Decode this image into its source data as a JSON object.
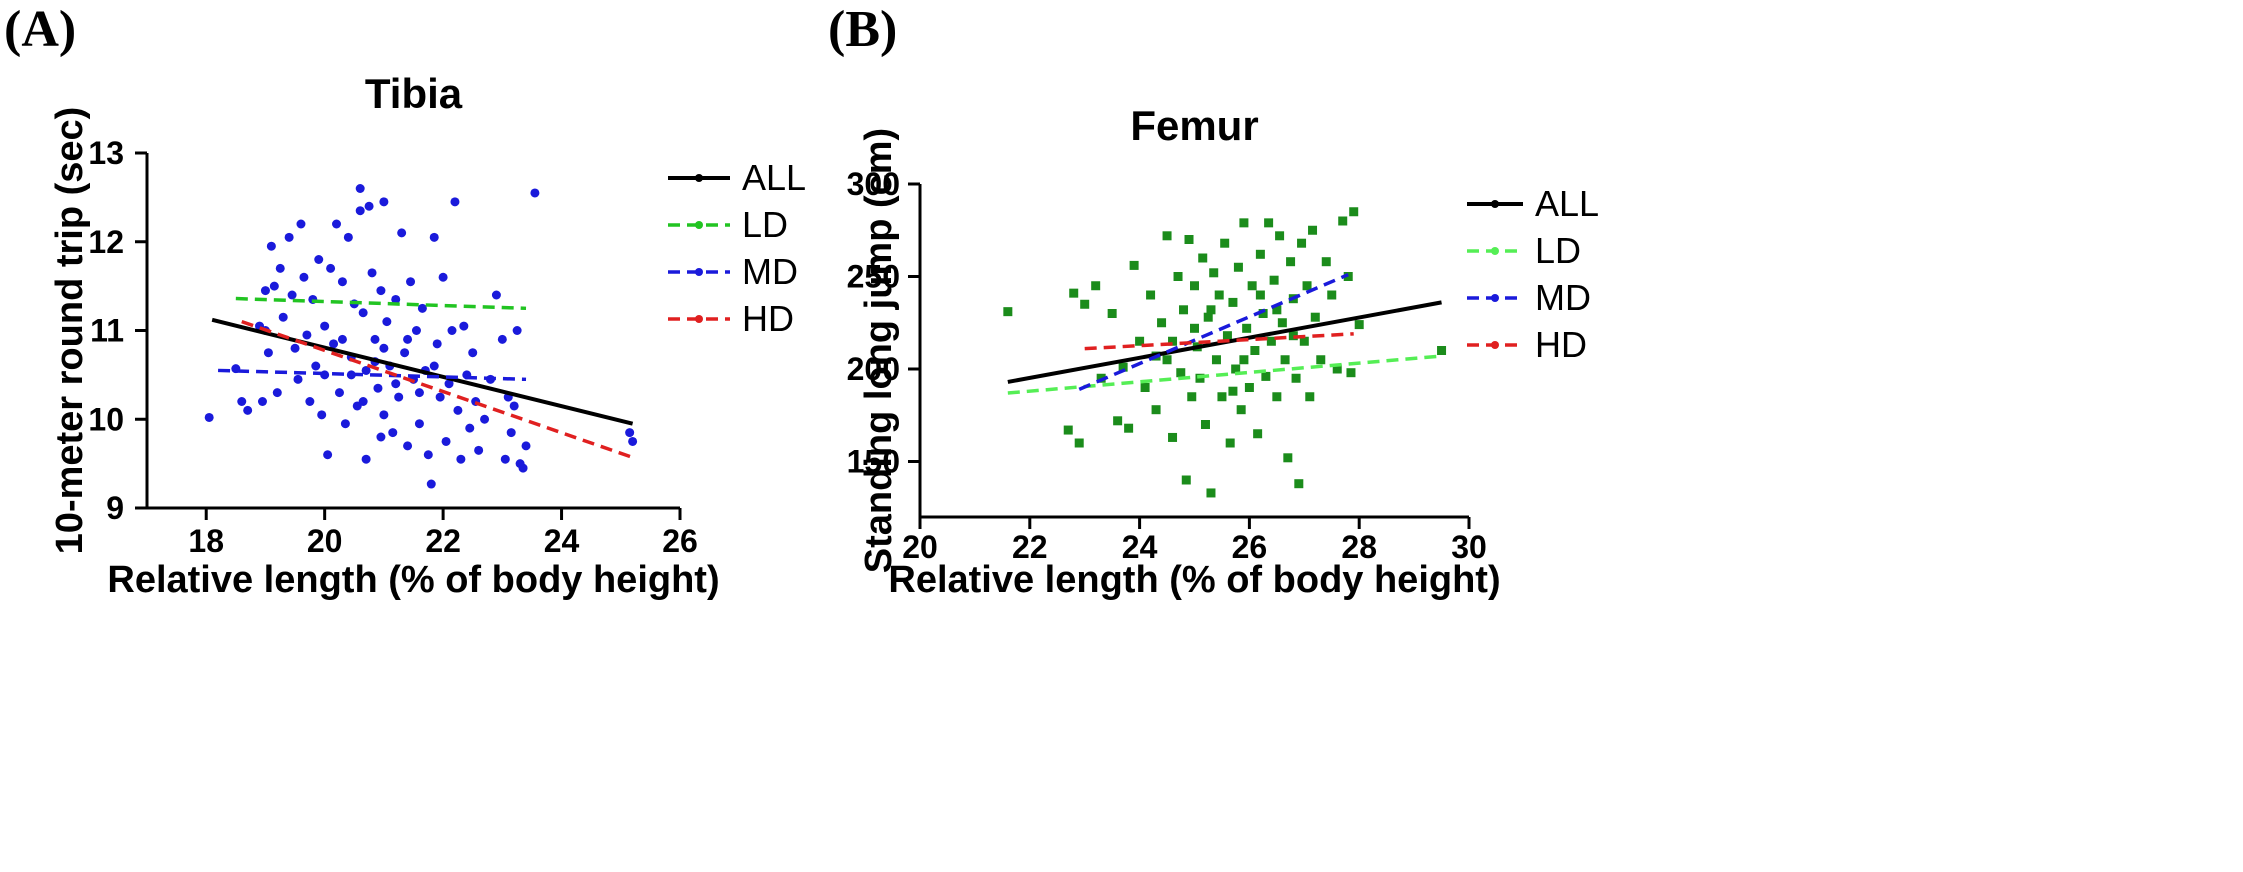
{
  "panels": {
    "a": {
      "letter": "(A)"
    },
    "b": {
      "letter": "(B)"
    }
  },
  "chart_data": [
    {
      "type": "scatter",
      "title": "Tibia",
      "xlabel": "Relative length (% of body height)",
      "ylabel": "10-meter round trip (sec)",
      "xlim": [
        17,
        26
      ],
      "ylim": [
        9,
        13
      ],
      "xticks": [
        18,
        20,
        22,
        24,
        26
      ],
      "yticks": [
        9,
        10,
        11,
        12,
        13
      ],
      "grid": false,
      "legend_position": "right",
      "point_color": "#1a1adb",
      "series": [
        {
          "name": "ALL",
          "color": "#000000",
          "dash": "solid",
          "fit": {
            "x": [
              18.1,
              25.2
            ],
            "y": [
              11.12,
              9.95
            ]
          }
        },
        {
          "name": "LD",
          "color": "#22c422",
          "dash": "dashed",
          "fit": {
            "x": [
              18.5,
              23.4
            ],
            "y": [
              11.36,
              11.25
            ]
          }
        },
        {
          "name": "MD",
          "color": "#1a1adb",
          "dash": "dashed",
          "fit": {
            "x": [
              18.2,
              23.4
            ],
            "y": [
              10.55,
              10.45
            ]
          }
        },
        {
          "name": "HD",
          "color": "#e02020",
          "dash": "dashed",
          "fit": {
            "x": [
              18.6,
              25.2
            ],
            "y": [
              11.1,
              9.57
            ]
          }
        }
      ],
      "points": [
        [
          18.05,
          10.02
        ],
        [
          18.5,
          10.57
        ],
        [
          18.6,
          10.2
        ],
        [
          18.7,
          10.1
        ],
        [
          18.9,
          11.05
        ],
        [
          18.95,
          10.2
        ],
        [
          19.0,
          11.45
        ],
        [
          19.0,
          11.0
        ],
        [
          19.05,
          10.75
        ],
        [
          19.1,
          11.95
        ],
        [
          19.15,
          11.5
        ],
        [
          19.2,
          10.3
        ],
        [
          19.25,
          11.7
        ],
        [
          19.3,
          11.15
        ],
        [
          19.4,
          12.05
        ],
        [
          19.45,
          11.4
        ],
        [
          19.5,
          10.8
        ],
        [
          19.55,
          10.45
        ],
        [
          19.6,
          12.2
        ],
        [
          19.65,
          11.6
        ],
        [
          19.7,
          10.95
        ],
        [
          19.75,
          10.2
        ],
        [
          19.8,
          11.35
        ],
        [
          19.85,
          10.6
        ],
        [
          19.9,
          11.8
        ],
        [
          19.95,
          10.05
        ],
        [
          20.0,
          11.05
        ],
        [
          20.0,
          10.5
        ],
        [
          20.05,
          9.6
        ],
        [
          20.1,
          11.7
        ],
        [
          20.15,
          10.85
        ],
        [
          20.2,
          12.2
        ],
        [
          20.25,
          10.3
        ],
        [
          20.3,
          11.55
        ],
        [
          20.35,
          9.95
        ],
        [
          20.4,
          12.05
        ],
        [
          20.45,
          10.7
        ],
        [
          20.5,
          11.3
        ],
        [
          20.55,
          10.15
        ],
        [
          20.6,
          12.35
        ],
        [
          20.6,
          12.6
        ],
        [
          20.65,
          11.2
        ],
        [
          20.7,
          10.55
        ],
        [
          20.7,
          9.55
        ],
        [
          20.75,
          12.4
        ],
        [
          20.8,
          11.65
        ],
        [
          20.85,
          10.9
        ],
        [
          20.9,
          10.35
        ],
        [
          20.95,
          11.45
        ],
        [
          21.0,
          12.45
        ],
        [
          21.0,
          10.05
        ],
        [
          21.05,
          11.1
        ],
        [
          21.1,
          10.6
        ],
        [
          21.15,
          9.85
        ],
        [
          21.2,
          11.35
        ],
        [
          21.25,
          10.25
        ],
        [
          21.3,
          12.1
        ],
        [
          21.35,
          10.75
        ],
        [
          21.4,
          9.7
        ],
        [
          21.45,
          11.55
        ],
        [
          21.5,
          10.45
        ],
        [
          21.55,
          11.0
        ],
        [
          21.6,
          9.95
        ],
        [
          21.65,
          11.25
        ],
        [
          21.7,
          10.55
        ],
        [
          21.75,
          9.6
        ],
        [
          21.8,
          9.27
        ],
        [
          21.85,
          12.05
        ],
        [
          21.9,
          10.85
        ],
        [
          21.95,
          10.25
        ],
        [
          22.0,
          11.6
        ],
        [
          22.05,
          9.75
        ],
        [
          22.1,
          10.4
        ],
        [
          22.15,
          11.0
        ],
        [
          22.2,
          12.45
        ],
        [
          22.25,
          10.1
        ],
        [
          22.3,
          9.55
        ],
        [
          22.35,
          11.05
        ],
        [
          22.4,
          10.5
        ],
        [
          22.45,
          9.9
        ],
        [
          22.5,
          10.75
        ],
        [
          22.55,
          10.2
        ],
        [
          22.6,
          9.65
        ],
        [
          22.7,
          10.0
        ],
        [
          22.8,
          10.45
        ],
        [
          22.9,
          11.4
        ],
        [
          23.0,
          10.9
        ],
        [
          23.05,
          9.55
        ],
        [
          23.1,
          10.25
        ],
        [
          23.15,
          9.85
        ],
        [
          23.2,
          10.15
        ],
        [
          23.25,
          11.0
        ],
        [
          23.3,
          9.5
        ],
        [
          23.35,
          9.45
        ],
        [
          23.4,
          9.7
        ],
        [
          23.55,
          12.55
        ],
        [
          25.2,
          9.75
        ],
        [
          25.15,
          9.85
        ],
        [
          20.45,
          10.5
        ],
        [
          20.85,
          10.65
        ],
        [
          21.2,
          10.4
        ],
        [
          21.0,
          10.8
        ],
        [
          20.65,
          10.2
        ],
        [
          21.4,
          10.9
        ],
        [
          21.6,
          10.3
        ],
        [
          20.3,
          10.9
        ],
        [
          21.85,
          10.6
        ],
        [
          20.95,
          9.8
        ]
      ]
    },
    {
      "type": "scatter",
      "title": "Femur",
      "xlabel": "Relative length (% of body height)",
      "ylabel": "Standing long jump (cm)",
      "xlim": [
        20,
        30
      ],
      "ylim": [
        120,
        300
      ],
      "xticks": [
        20,
        22,
        24,
        26,
        28,
        30
      ],
      "yticks": [
        150,
        200,
        250,
        300
      ],
      "grid": false,
      "legend_position": "right",
      "point_color": "#1b8c1b",
      "series": [
        {
          "name": "ALL",
          "color": "#000000",
          "dash": "solid",
          "fit": {
            "x": [
              21.6,
              29.5
            ],
            "y": [
              193,
              236
            ]
          }
        },
        {
          "name": "LD",
          "color": "#55ee55",
          "dash": "dashed",
          "fit": {
            "x": [
              21.6,
              29.5
            ],
            "y": [
              187,
              207
            ]
          }
        },
        {
          "name": "MD",
          "color": "#1a1adb",
          "dash": "dashed",
          "fit": {
            "x": [
              22.9,
              27.8
            ],
            "y": [
              189,
              251
            ]
          }
        },
        {
          "name": "HD",
          "color": "#e02020",
          "dash": "dashed",
          "fit": {
            "x": [
              23.0,
              27.9
            ],
            "y": [
              211,
              219
            ]
          }
        }
      ],
      "points": [
        [
          21.6,
          231
        ],
        [
          22.7,
          167
        ],
        [
          22.8,
          241
        ],
        [
          22.9,
          160
        ],
        [
          23.0,
          235
        ],
        [
          23.2,
          245
        ],
        [
          23.3,
          195
        ],
        [
          23.5,
          230
        ],
        [
          23.6,
          172
        ],
        [
          23.7,
          201
        ],
        [
          23.8,
          168
        ],
        [
          23.9,
          256
        ],
        [
          24.0,
          215
        ],
        [
          24.1,
          190
        ],
        [
          24.2,
          240
        ],
        [
          24.3,
          178
        ],
        [
          24.4,
          225
        ],
        [
          24.5,
          205
        ],
        [
          24.5,
          272
        ],
        [
          24.6,
          163
        ],
        [
          24.7,
          250
        ],
        [
          24.75,
          198
        ],
        [
          24.8,
          232
        ],
        [
          24.85,
          140
        ],
        [
          24.9,
          270
        ],
        [
          24.95,
          185
        ],
        [
          25.0,
          245
        ],
        [
          25.05,
          212
        ],
        [
          25.1,
          195
        ],
        [
          25.15,
          260
        ],
        [
          25.2,
          170
        ],
        [
          25.25,
          228
        ],
        [
          25.3,
          133
        ],
        [
          25.35,
          252
        ],
        [
          25.4,
          205
        ],
        [
          25.45,
          240
        ],
        [
          25.5,
          185
        ],
        [
          25.55,
          268
        ],
        [
          25.6,
          218
        ],
        [
          25.65,
          160
        ],
        [
          25.7,
          236
        ],
        [
          25.75,
          200
        ],
        [
          25.8,
          255
        ],
        [
          25.85,
          178
        ],
        [
          25.9,
          279
        ],
        [
          25.95,
          222
        ],
        [
          26.0,
          190
        ],
        [
          26.05,
          245
        ],
        [
          26.1,
          210
        ],
        [
          26.15,
          165
        ],
        [
          26.2,
          262
        ],
        [
          26.25,
          230
        ],
        [
          26.3,
          196
        ],
        [
          26.35,
          279
        ],
        [
          26.4,
          215
        ],
        [
          26.45,
          248
        ],
        [
          26.5,
          185
        ],
        [
          26.55,
          272
        ],
        [
          26.6,
          225
        ],
        [
          26.65,
          205
        ],
        [
          26.7,
          152
        ],
        [
          26.75,
          258
        ],
        [
          26.8,
          238
        ],
        [
          26.85,
          195
        ],
        [
          26.9,
          138
        ],
        [
          26.95,
          268
        ],
        [
          27.0,
          215
        ],
        [
          27.05,
          245
        ],
        [
          27.1,
          185
        ],
        [
          27.15,
          275
        ],
        [
          27.2,
          228
        ],
        [
          27.3,
          205
        ],
        [
          27.4,
          258
        ],
        [
          27.5,
          240
        ],
        [
          27.6,
          200
        ],
        [
          27.7,
          280
        ],
        [
          27.8,
          250
        ],
        [
          27.85,
          198
        ],
        [
          27.9,
          285
        ],
        [
          28.0,
          224
        ],
        [
          29.5,
          210
        ],
        [
          25.3,
          232
        ],
        [
          25.7,
          188
        ],
        [
          26.2,
          240
        ],
        [
          25.0,
          222
        ],
        [
          24.6,
          215
        ],
        [
          26.5,
          232
        ],
        [
          25.9,
          205
        ],
        [
          24.3,
          207
        ],
        [
          26.8,
          218
        ]
      ]
    }
  ]
}
